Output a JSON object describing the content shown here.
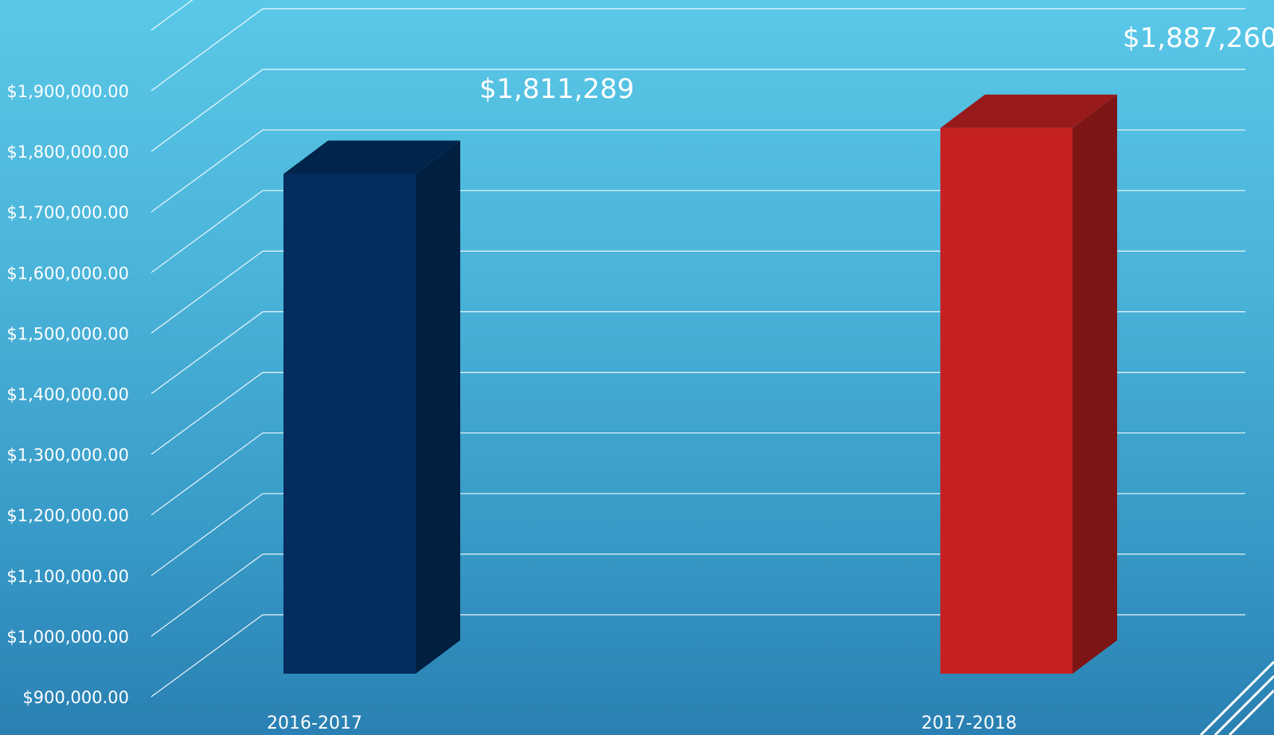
{
  "chart_data": {
    "type": "bar",
    "categories": [
      "2016-2017",
      "2017-2018"
    ],
    "values": [
      1811289,
      1887260
    ],
    "data_labels": [
      "$1,811,289",
      "$1,887,260"
    ],
    "ylim": [
      900000,
      1900000
    ],
    "yticks": [
      900000,
      1000000,
      1100000,
      1200000,
      1300000,
      1400000,
      1500000,
      1600000,
      1700000,
      1800000,
      1900000
    ],
    "ytick_labels": [
      "$900,000.00",
      "$1,000,000.00",
      "$1,100,000.00",
      "$1,200,000.00",
      "$1,300,000.00",
      "$1,400,000.00",
      "$1,500,000.00",
      "$1,600,000.00",
      "$1,700,000.00",
      "$1,800,000.00",
      "$1,900,000.00"
    ],
    "title": "",
    "xlabel": "",
    "ylabel": "",
    "grid": true,
    "style": "3d-column",
    "colors": {
      "background_top": "#5ac8e8",
      "background_bottom": "#2a80b2",
      "series": [
        "#032d5e",
        "#c52122"
      ],
      "series_side": [
        "#011f41",
        "#7e1515"
      ],
      "series_top": [
        "#01244b",
        "#981a1b"
      ],
      "grid": "#ffffff",
      "text": "#ffffff"
    }
  }
}
